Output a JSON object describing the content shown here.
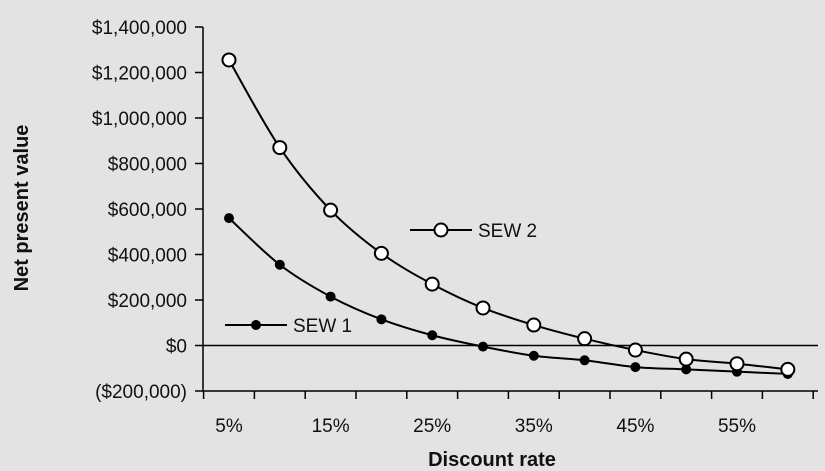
{
  "chart_data": {
    "type": "line",
    "xlabel": "Discount rate",
    "ylabel": "Net present value",
    "x": [
      "5%",
      "10%",
      "15%",
      "20%",
      "25%",
      "30%",
      "35%",
      "40%",
      "45%",
      "50%",
      "55%",
      "60%"
    ],
    "x_tick_labels": [
      "5%",
      "15%",
      "25%",
      "35%",
      "45%",
      "55%"
    ],
    "y_tick_labels": [
      "$1,400,000",
      "$1,200,000",
      "$1,000,000",
      "$800,000",
      "$600,000",
      "$400,000",
      "$200,000",
      "$0",
      "($200,000)"
    ],
    "ylim": [
      -200000,
      1400000
    ],
    "grid": false,
    "zero_line": true,
    "series": [
      {
        "name": "SEW 1",
        "marker": "filled-circle",
        "values": [
          560000,
          355000,
          215000,
          115000,
          45000,
          -5000,
          -45000,
          -65000,
          -95000,
          -105000,
          -115000,
          -125000
        ]
      },
      {
        "name": "SEW 2",
        "marker": "open-circle",
        "values": [
          1255000,
          870000,
          595000,
          405000,
          270000,
          165000,
          90000,
          30000,
          -20000,
          -60000,
          -80000,
          -105000
        ]
      }
    ],
    "legend_placement": "inline-labels",
    "colors": {
      "line": "#000000",
      "background": "#e3e3e3",
      "marker_fill_open": "#ffffff"
    }
  }
}
